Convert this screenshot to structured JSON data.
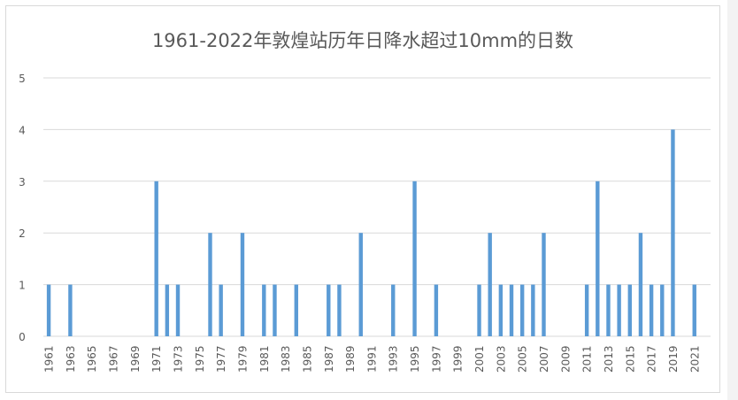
{
  "chart_data": {
    "type": "bar",
    "title": "1961-2022年敦煌站历年日降水超过10mm的日数",
    "xlabel": "",
    "ylabel": "",
    "ylim": [
      0,
      5
    ],
    "yticks": [
      "0",
      "1",
      "2",
      "3",
      "4",
      "5"
    ],
    "grid": true,
    "legend": "none",
    "bar_color": "#5b9bd5",
    "xtick_labels": [
      "1961",
      "1963",
      "1965",
      "1967",
      "1969",
      "1971",
      "1973",
      "1975",
      "1977",
      "1979",
      "1981",
      "1983",
      "1985",
      "1987",
      "1989",
      "1991",
      "1993",
      "1995",
      "1997",
      "1999",
      "2001",
      "2003",
      "2005",
      "2007",
      "2009",
      "2011",
      "2013",
      "2015",
      "2017",
      "2019",
      "2021"
    ],
    "categories": [
      1961,
      1962,
      1963,
      1964,
      1965,
      1966,
      1967,
      1968,
      1969,
      1970,
      1971,
      1972,
      1973,
      1974,
      1975,
      1976,
      1977,
      1978,
      1979,
      1980,
      1981,
      1982,
      1983,
      1984,
      1985,
      1986,
      1987,
      1988,
      1989,
      1990,
      1991,
      1992,
      1993,
      1994,
      1995,
      1996,
      1997,
      1998,
      1999,
      2000,
      2001,
      2002,
      2003,
      2004,
      2005,
      2006,
      2007,
      2008,
      2009,
      2010,
      2011,
      2012,
      2013,
      2014,
      2015,
      2016,
      2017,
      2018,
      2019,
      2020,
      2021,
      2022
    ],
    "values": [
      1,
      0,
      1,
      0,
      0,
      0,
      0,
      0,
      0,
      0,
      3,
      1,
      1,
      0,
      0,
      2,
      1,
      0,
      2,
      0,
      1,
      1,
      0,
      1,
      0,
      0,
      1,
      1,
      0,
      2,
      0,
      0,
      1,
      0,
      3,
      0,
      1,
      0,
      0,
      0,
      1,
      2,
      1,
      1,
      1,
      1,
      2,
      0,
      0,
      0,
      1,
      3,
      1,
      1,
      1,
      2,
      1,
      1,
      4,
      0,
      1,
      0
    ]
  }
}
